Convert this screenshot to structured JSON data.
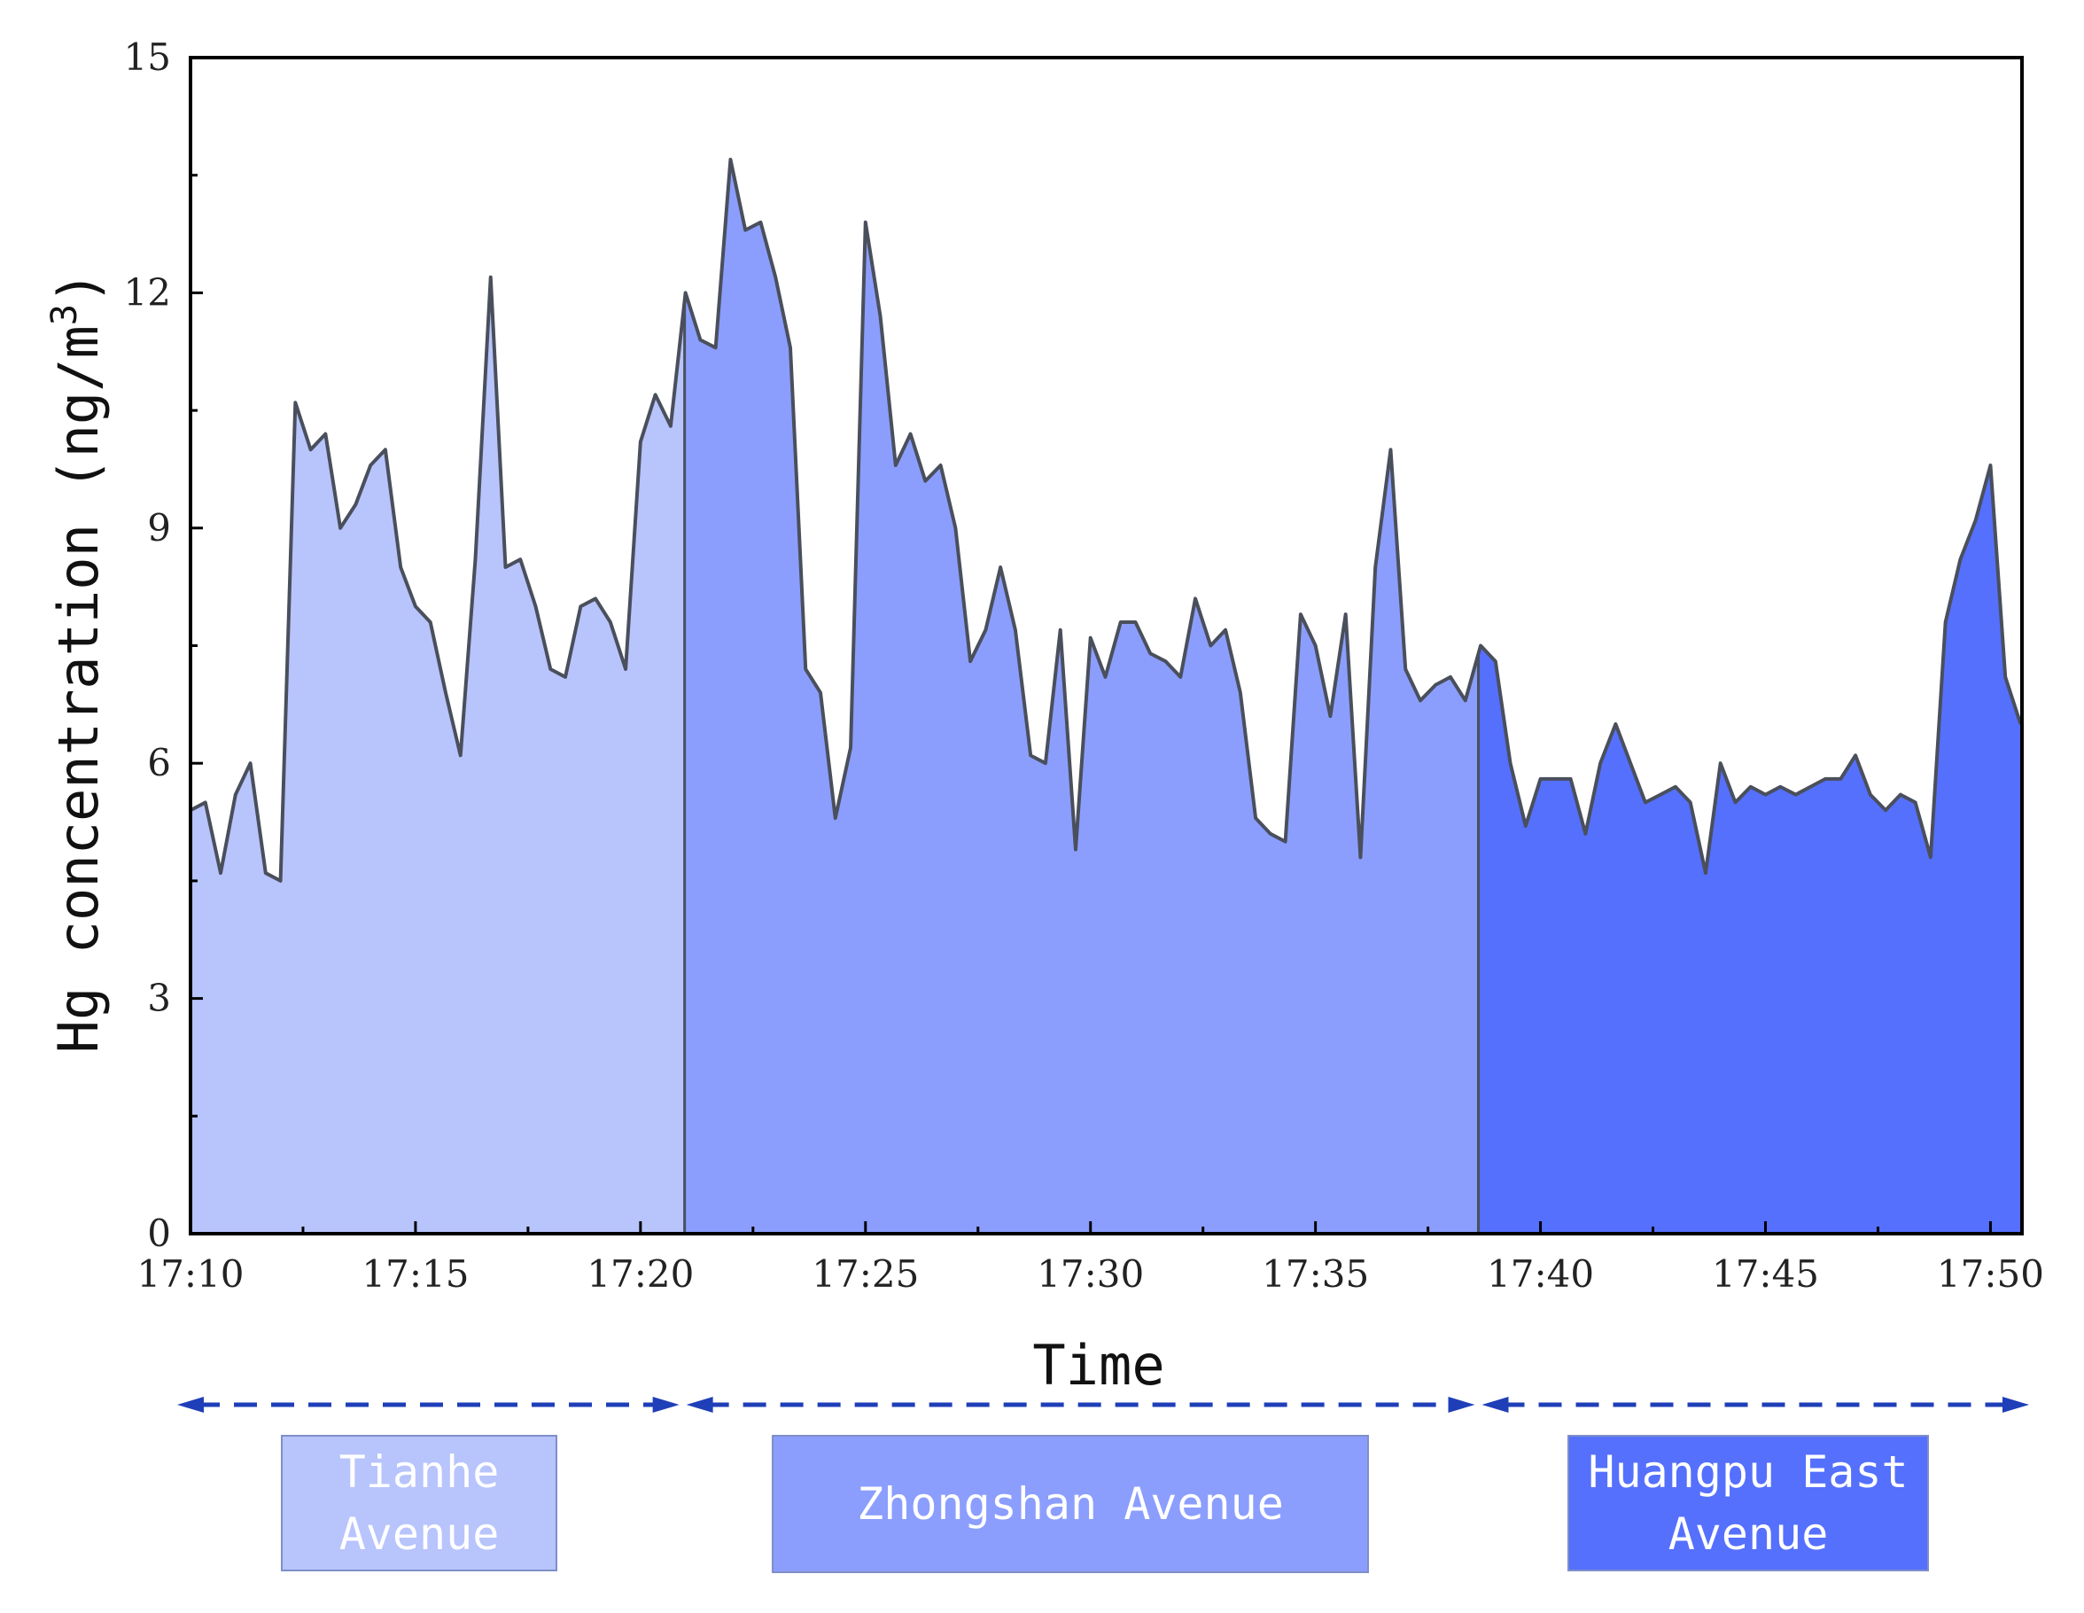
{
  "chart_data": {
    "type": "area",
    "xlabel": "Time",
    "ylabel": "Hg concentration (ng/m",
    "ylabel_sup": "3",
    "ylabel_close": ")",
    "ylim": [
      0,
      15
    ],
    "xlim": [
      "17:10",
      "17:50"
    ],
    "y_ticks": [
      "0",
      "3",
      "6",
      "9",
      "12",
      "15"
    ],
    "x_ticks": [
      "17:10",
      "17:15",
      "17:20",
      "17:25",
      "17:30",
      "17:35",
      "17:40",
      "17:45",
      "17:50"
    ],
    "grid": false,
    "x_minutes": [
      0,
      0.33,
      0.67,
      1.0,
      1.33,
      1.67,
      2.0,
      2.33,
      2.67,
      3.0,
      3.33,
      3.67,
      4.0,
      4.33,
      4.67,
      5.0,
      5.33,
      5.67,
      6.0,
      6.33,
      6.67,
      7.0,
      7.33,
      7.67,
      8.0,
      8.33,
      8.67,
      9.0,
      9.33,
      9.67,
      10.0,
      10.33,
      10.67,
      11.0,
      11.33,
      11.67,
      12.0,
      12.33,
      12.67,
      13.0,
      13.33,
      13.67,
      14.0,
      14.33,
      14.67,
      15.0,
      15.33,
      15.67,
      16.0,
      16.33,
      16.67,
      17.0,
      17.33,
      17.67,
      18.0,
      18.33,
      18.67,
      19.0,
      19.33,
      19.67,
      20.0,
      20.33,
      20.67,
      21.0,
      21.33,
      21.67,
      22.0,
      22.33,
      22.67,
      23.0,
      23.33,
      23.67,
      24.0,
      24.33,
      24.67,
      25.0,
      25.33,
      25.67,
      26.0,
      26.33,
      26.67,
      27.0,
      27.33,
      27.67,
      28.0,
      28.33,
      28.67,
      29.0,
      29.33,
      29.67,
      30.0,
      30.33,
      30.67,
      31.0,
      31.33,
      31.67,
      32.0,
      32.33,
      32.67,
      33.0,
      33.33,
      33.67,
      34.0,
      34.33,
      34.67,
      35.0,
      35.33,
      35.67,
      36.0,
      36.33,
      36.67,
      37.0,
      37.33,
      37.67,
      38.0,
      38.33,
      38.67,
      39.0,
      39.33,
      39.67,
      40.0,
      40.33,
      40.67
    ],
    "values": [
      5.4,
      5.5,
      4.6,
      5.6,
      6.0,
      4.6,
      4.5,
      10.6,
      10.0,
      10.2,
      9.0,
      9.3,
      9.8,
      10.0,
      8.5,
      8.0,
      7.8,
      6.9,
      6.1,
      8.6,
      12.2,
      8.5,
      8.6,
      8.0,
      7.2,
      7.1,
      8.0,
      8.1,
      7.8,
      7.2,
      10.1,
      10.7,
      10.3,
      12.0,
      11.4,
      11.3,
      13.7,
      12.8,
      12.9,
      12.2,
      11.3,
      7.2,
      6.9,
      5.3,
      6.2,
      12.9,
      11.7,
      9.8,
      10.2,
      9.6,
      9.8,
      9.0,
      7.3,
      7.7,
      8.5,
      7.7,
      6.1,
      6.0,
      7.7,
      4.9,
      7.6,
      7.1,
      7.8,
      7.8,
      7.4,
      7.3,
      7.1,
      8.1,
      7.5,
      7.7,
      6.9,
      5.3,
      5.1,
      5.0,
      7.9,
      7.5,
      6.6,
      7.9,
      4.8,
      8.5,
      10.0,
      7.2,
      6.8,
      7.0,
      7.1,
      6.8,
      7.5,
      7.3,
      6.0,
      5.2,
      5.8,
      5.8,
      5.8,
      5.1,
      6.0,
      6.5,
      6.0,
      5.5,
      5.6,
      5.7,
      5.5,
      4.6,
      6.0,
      5.5,
      5.7,
      5.6,
      5.7,
      5.6,
      5.7,
      5.8,
      5.8,
      6.1,
      5.6,
      5.4,
      5.6,
      5.5,
      4.8,
      7.8,
      8.6,
      9.1,
      9.8,
      7.1,
      6.5
    ],
    "segments": [
      {
        "name": "Tianhe Avenue",
        "label_lines": [
          "Tianhe",
          "Avenue"
        ],
        "start_min": 0,
        "end_min": 10.98,
        "color": "#b8c4fc"
      },
      {
        "name": "Zhongshan Avenue",
        "label_lines": [
          "Zhongshan Avenue"
        ],
        "start_min": 10.98,
        "end_min": 28.62,
        "color": "#8b9efd"
      },
      {
        "name": "Huangpu East Avenue",
        "label_lines": [
          "Huangpu East",
          "Avenue"
        ],
        "start_min": 28.62,
        "end_min": 40.7,
        "color": "#5570fd"
      }
    ],
    "line_color": "#4a4f5c",
    "arrow_color": "#1f3fb8",
    "label_box_border": "#7f8fc8"
  }
}
